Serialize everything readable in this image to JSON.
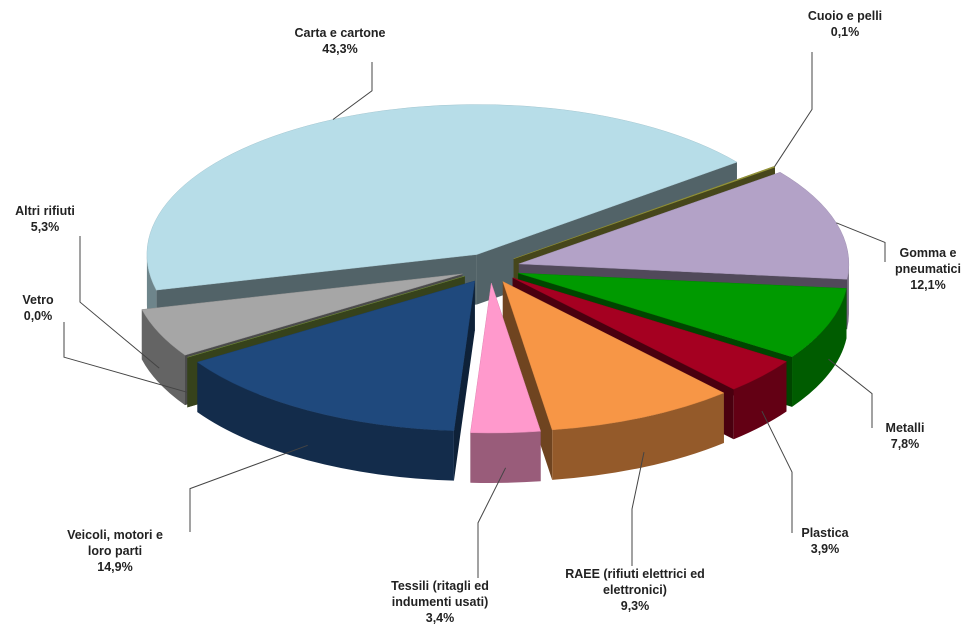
{
  "chart_data": {
    "type": "pie",
    "categories": [
      "Cuoio e pelli",
      "Gomma e pneumatici",
      "Metalli",
      "Plastica",
      "RAEE (rifiuti elettrici ed elettronici)",
      "Tessili (ritagli ed indumenti usati)",
      "Veicoli, motori e loro parti",
      "Vetro",
      "Altri rifiuti",
      "Carta e cartone"
    ],
    "values": [
      0.1,
      12.1,
      7.8,
      3.9,
      9.3,
      3.4,
      14.9,
      0.0,
      5.3,
      43.3
    ],
    "value_labels": [
      "0,1%",
      "12,1%",
      "7,8%",
      "3,9%",
      "9,3%",
      "3,4%",
      "14,9%",
      "0,0%",
      "5,3%",
      "43,3%"
    ],
    "colors": [
      "#9b9b3c",
      "#b3a2c7",
      "#009a00",
      "#a50021",
      "#f79646",
      "#ff99cc",
      "#1f497d",
      "#77933c",
      "#a6a6a6",
      "#b7dde8"
    ]
  }
}
